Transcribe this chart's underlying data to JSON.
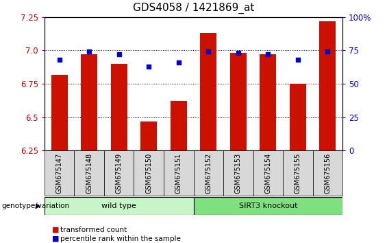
{
  "title": "GDS4058 / 1421869_at",
  "samples": [
    "GSM675147",
    "GSM675148",
    "GSM675149",
    "GSM675150",
    "GSM675151",
    "GSM675152",
    "GSM675153",
    "GSM675154",
    "GSM675155",
    "GSM675156"
  ],
  "transformed_count": [
    6.82,
    6.97,
    6.9,
    6.47,
    6.62,
    7.13,
    6.98,
    6.97,
    6.75,
    7.22
  ],
  "percentile_rank": [
    68,
    74,
    72,
    63,
    66,
    74,
    73,
    72,
    68,
    74
  ],
  "ylim_left": [
    6.25,
    7.25
  ],
  "ylim_right": [
    0,
    100
  ],
  "yticks_left": [
    6.25,
    6.5,
    6.75,
    7.0,
    7.25
  ],
  "yticks_right": [
    0,
    25,
    50,
    75,
    100
  ],
  "ytick_labels_right": [
    "0",
    "25",
    "50",
    "75",
    "100%"
  ],
  "groups": [
    {
      "label": "wild type",
      "start": 0,
      "end": 4,
      "color": "#c8f5c8"
    },
    {
      "label": "SIRT3 knockout",
      "start": 5,
      "end": 9,
      "color": "#7ee07e"
    }
  ],
  "group_label": "genotype/variation",
  "bar_color": "#cc1100",
  "dot_color": "#0000cc",
  "bar_width": 0.55,
  "axis_bg": "#ffffff",
  "plot_bg": "#ffffff",
  "legend_items": [
    {
      "label": "transformed count",
      "color": "#cc1100"
    },
    {
      "label": "percentile rank within the sample",
      "color": "#0000cc"
    }
  ]
}
